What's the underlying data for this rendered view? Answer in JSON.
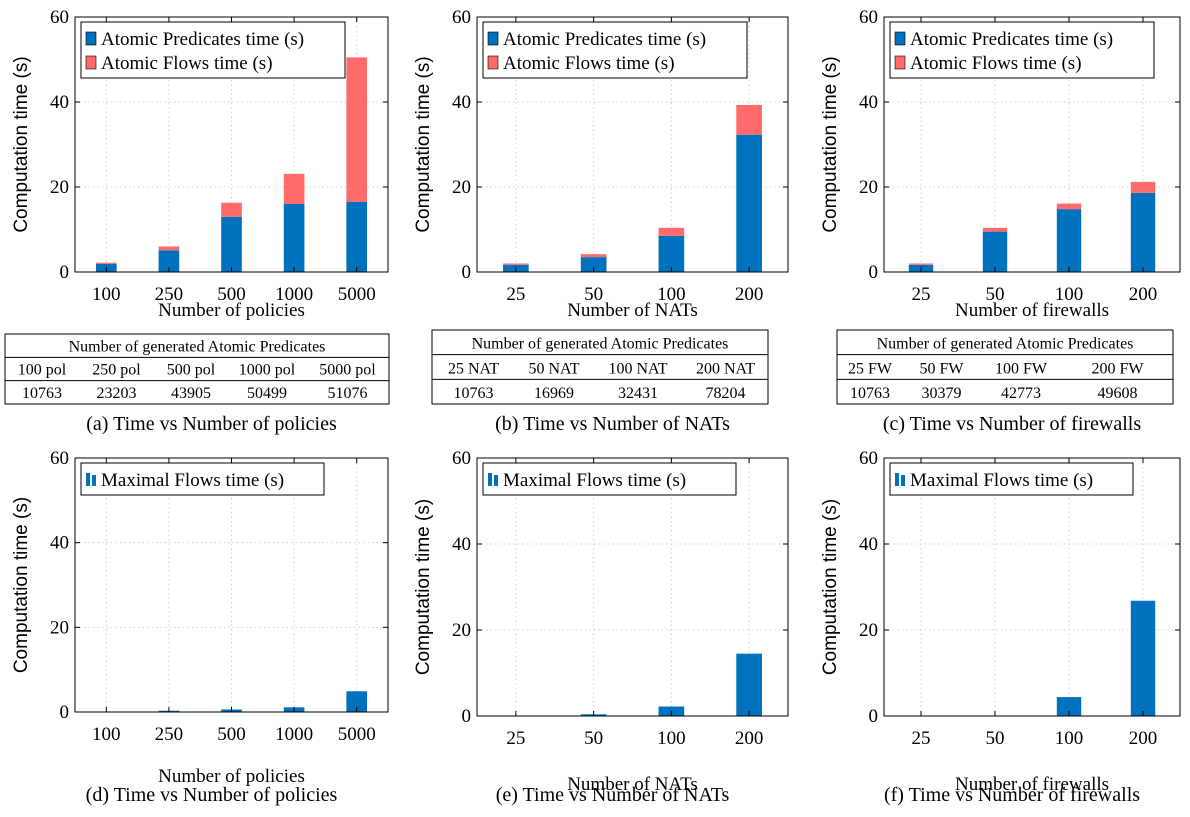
{
  "colors": {
    "pred": "#0072bd",
    "flow": "#ff6b6b",
    "maxflow": "#0072bd"
  },
  "chart_data": [
    {
      "type": "bar",
      "panel": "a",
      "categories": [
        "100",
        "250",
        "500",
        "1000",
        "5000"
      ],
      "series": [
        {
          "name": "Atomic Predicates time (s)",
          "values": [
            1.9,
            5.1,
            13.0,
            16.0,
            16.5
          ]
        },
        {
          "name": "Atomic Flows time (s)",
          "values": [
            0.3,
            0.9,
            3.3,
            7.1,
            34.0
          ]
        }
      ],
      "stacked": true,
      "ylabel": "Computation time (s)",
      "xlabel": "Number of policies",
      "ylim": [
        0,
        60
      ],
      "yticks": [
        0,
        20,
        40,
        60
      ],
      "grid": true,
      "legend": "top-left",
      "caption": "(a) Time vs Number of policies",
      "table": {
        "title": "Number of generated Atomic Predicates",
        "headers": [
          "100 pol",
          "250 pol",
          "500 pol",
          "1000 pol",
          "5000 pol"
        ],
        "values": [
          "10763",
          "23203",
          "43905",
          "50499",
          "51076"
        ]
      }
    },
    {
      "type": "bar",
      "panel": "b",
      "categories": [
        "25",
        "50",
        "100",
        "200"
      ],
      "series": [
        {
          "name": "Atomic Predicates time (s)",
          "values": [
            1.7,
            3.5,
            8.5,
            32.3
          ]
        },
        {
          "name": "Atomic Flows time (s)",
          "values": [
            0.3,
            0.7,
            1.9,
            7.0
          ]
        }
      ],
      "stacked": true,
      "ylabel": "Computation time (s)",
      "xlabel": "Number of NATs",
      "ylim": [
        0,
        60
      ],
      "yticks": [
        0,
        20,
        40,
        60
      ],
      "grid": true,
      "legend": "top-left",
      "caption": "(b) Time vs Number of NATs",
      "table": {
        "title": "Number of generated Atomic Predicates",
        "headers": [
          "25 NAT",
          "50 NAT",
          "100 NAT",
          "200 NAT"
        ],
        "values": [
          "10763",
          "16969",
          "32431",
          "78204"
        ]
      }
    },
    {
      "type": "bar",
      "panel": "c",
      "categories": [
        "25",
        "50",
        "100",
        "200"
      ],
      "series": [
        {
          "name": "Atomic Predicates time (s)",
          "values": [
            1.7,
            9.5,
            14.8,
            18.6
          ]
        },
        {
          "name": "Atomic Flows time (s)",
          "values": [
            0.3,
            0.9,
            1.3,
            2.6
          ]
        }
      ],
      "stacked": true,
      "ylabel": "Computation time (s)",
      "xlabel": "Number of firewalls",
      "ylim": [
        0,
        60
      ],
      "yticks": [
        0,
        20,
        40,
        60
      ],
      "grid": true,
      "legend": "top-left",
      "caption": "(c) Time vs Number of firewalls",
      "table": {
        "title": "Number of generated Atomic Predicates",
        "headers": [
          "25 FW",
          "50 FW",
          "100 FW",
          "200 FW"
        ],
        "values": [
          "10763",
          "30379",
          "42773",
          "49608"
        ]
      }
    },
    {
      "type": "bar",
      "panel": "d",
      "categories": [
        "100",
        "250",
        "500",
        "1000",
        "5000"
      ],
      "series": [
        {
          "name": "Maximal Flows time (s)",
          "values": [
            0.1,
            0.3,
            0.6,
            1.1,
            4.9
          ]
        }
      ],
      "ylabel": "Computation time (s)",
      "xlabel": "Number of policies",
      "ylim": [
        0,
        60
      ],
      "yticks": [
        0,
        20,
        40,
        60
      ],
      "grid": true,
      "legend": "top-left",
      "caption": "(d) Time vs Number of policies"
    },
    {
      "type": "bar",
      "panel": "e",
      "categories": [
        "25",
        "50",
        "100",
        "200"
      ],
      "series": [
        {
          "name": "Maximal Flows time (s)",
          "values": [
            0.05,
            0.4,
            2.2,
            14.5
          ]
        }
      ],
      "ylabel": "Computation time (s)",
      "xlabel": "Number of NATs",
      "ylim": [
        0,
        60
      ],
      "yticks": [
        0,
        20,
        40,
        60
      ],
      "grid": true,
      "legend": "top-left",
      "caption": "(e) Time vs Number of NATs"
    },
    {
      "type": "bar",
      "panel": "f",
      "categories": [
        "25",
        "50",
        "100",
        "200"
      ],
      "series": [
        {
          "name": "Maximal Flows time (s)",
          "values": [
            0.05,
            0.1,
            4.4,
            26.8
          ]
        }
      ],
      "ylabel": "Computation time (s)",
      "xlabel": "Number of firewalls",
      "ylim": [
        0,
        60
      ],
      "yticks": [
        0,
        20,
        40,
        60
      ],
      "grid": true,
      "legend": "top-left",
      "caption": "(f) Time vs Number of firewalls"
    }
  ]
}
